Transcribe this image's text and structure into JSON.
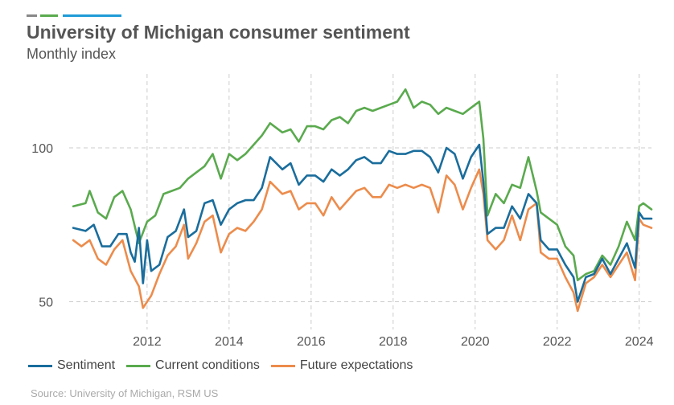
{
  "header": {
    "title": "University of Michigan consumer sentiment",
    "subtitle": "Monthly index",
    "accent_colors": [
      "#888888",
      "#5aaa4e",
      "#1f9bd7"
    ]
  },
  "footer": {
    "source": "Source: University of Michigan, RSM US"
  },
  "chart_data": {
    "type": "line",
    "title": "University of Michigan consumer sentiment",
    "subtitle": "Monthly index",
    "xlabel": "",
    "ylabel": "",
    "x_range": [
      2010.1,
      2024.3
    ],
    "ylim": [
      41,
      124
    ],
    "y_ticks": [
      50,
      100
    ],
    "x_ticks": [
      2012,
      2014,
      2016,
      2018,
      2020,
      2022,
      2024
    ],
    "grid": "dashed",
    "legend_position": "bottom",
    "series": [
      {
        "name": "Sentiment",
        "color": "#1a6d9c",
        "points": [
          [
            2010.2,
            74
          ],
          [
            2010.5,
            73
          ],
          [
            2010.7,
            75
          ],
          [
            2010.9,
            68
          ],
          [
            2011.1,
            68
          ],
          [
            2011.3,
            72
          ],
          [
            2011.5,
            72
          ],
          [
            2011.6,
            66
          ],
          [
            2011.8,
            74
          ],
          [
            2012.0,
            70
          ],
          [
            2011.7,
            63
          ],
          [
            2011.9,
            56
          ],
          [
            2012.1,
            60
          ],
          [
            2012.3,
            62
          ],
          [
            2012.5,
            71
          ],
          [
            2012.7,
            73
          ],
          [
            2012.9,
            80
          ],
          [
            2013.0,
            71
          ],
          [
            2013.2,
            73
          ],
          [
            2013.4,
            82
          ],
          [
            2013.6,
            83
          ],
          [
            2013.8,
            75
          ],
          [
            2014.0,
            80
          ],
          [
            2014.2,
            82
          ],
          [
            2014.4,
            83
          ],
          [
            2014.6,
            83
          ],
          [
            2014.8,
            87
          ],
          [
            2015.0,
            97
          ],
          [
            2015.3,
            93
          ],
          [
            2015.5,
            95
          ],
          [
            2015.7,
            88
          ],
          [
            2015.9,
            91
          ],
          [
            2016.1,
            91
          ],
          [
            2016.3,
            89
          ],
          [
            2016.5,
            93
          ],
          [
            2016.7,
            91
          ],
          [
            2016.9,
            93
          ],
          [
            2017.1,
            96
          ],
          [
            2017.3,
            97
          ],
          [
            2017.5,
            95
          ],
          [
            2017.7,
            95
          ],
          [
            2017.9,
            99
          ],
          [
            2018.1,
            98
          ],
          [
            2018.3,
            98
          ],
          [
            2018.5,
            99
          ],
          [
            2018.7,
            99
          ],
          [
            2018.9,
            97
          ],
          [
            2019.1,
            92
          ],
          [
            2019.3,
            100
          ],
          [
            2019.5,
            98
          ],
          [
            2019.7,
            90
          ],
          [
            2019.9,
            97
          ],
          [
            2020.1,
            101
          ],
          [
            2020.2,
            89
          ],
          [
            2020.3,
            72
          ],
          [
            2020.5,
            74
          ],
          [
            2020.7,
            74
          ],
          [
            2020.9,
            81
          ],
          [
            2021.1,
            77
          ],
          [
            2021.3,
            85
          ],
          [
            2021.5,
            82
          ],
          [
            2021.6,
            70
          ],
          [
            2021.8,
            67
          ],
          [
            2022.0,
            67
          ],
          [
            2022.2,
            62
          ],
          [
            2022.4,
            58
          ],
          [
            2022.5,
            50
          ],
          [
            2022.7,
            58
          ],
          [
            2022.9,
            59
          ],
          [
            2023.1,
            64
          ],
          [
            2023.3,
            59
          ],
          [
            2023.5,
            64
          ],
          [
            2023.7,
            69
          ],
          [
            2023.9,
            61
          ],
          [
            2024.0,
            79
          ],
          [
            2024.1,
            77
          ],
          [
            2024.3,
            77
          ]
        ]
      },
      {
        "name": "Current conditions",
        "color": "#5aaa4e",
        "points": [
          [
            2010.2,
            81
          ],
          [
            2010.5,
            82
          ],
          [
            2010.6,
            86
          ],
          [
            2010.8,
            79
          ],
          [
            2011.0,
            77
          ],
          [
            2011.2,
            84
          ],
          [
            2011.4,
            86
          ],
          [
            2011.6,
            80
          ],
          [
            2011.8,
            69
          ],
          [
            2012.0,
            76
          ],
          [
            2012.2,
            78
          ],
          [
            2012.4,
            85
          ],
          [
            2012.6,
            86
          ],
          [
            2012.8,
            87
          ],
          [
            2013.0,
            90
          ],
          [
            2013.2,
            92
          ],
          [
            2013.4,
            94
          ],
          [
            2013.6,
            98
          ],
          [
            2013.8,
            90
          ],
          [
            2014.0,
            98
          ],
          [
            2014.2,
            96
          ],
          [
            2014.4,
            98
          ],
          [
            2014.6,
            101
          ],
          [
            2014.8,
            104
          ],
          [
            2015.0,
            108
          ],
          [
            2015.3,
            105
          ],
          [
            2015.5,
            106
          ],
          [
            2015.7,
            102
          ],
          [
            2015.9,
            107
          ],
          [
            2016.1,
            107
          ],
          [
            2016.3,
            106
          ],
          [
            2016.5,
            109
          ],
          [
            2016.7,
            110
          ],
          [
            2016.9,
            108
          ],
          [
            2017.1,
            112
          ],
          [
            2017.3,
            113
          ],
          [
            2017.5,
            112
          ],
          [
            2017.7,
            113
          ],
          [
            2017.9,
            114
          ],
          [
            2018.1,
            115
          ],
          [
            2018.3,
            119
          ],
          [
            2018.5,
            113
          ],
          [
            2018.7,
            115
          ],
          [
            2018.9,
            114
          ],
          [
            2019.1,
            111
          ],
          [
            2019.3,
            113
          ],
          [
            2019.5,
            112
          ],
          [
            2019.7,
            111
          ],
          [
            2019.9,
            113
          ],
          [
            2020.1,
            115
          ],
          [
            2020.2,
            103
          ],
          [
            2020.3,
            78
          ],
          [
            2020.5,
            85
          ],
          [
            2020.7,
            82
          ],
          [
            2020.9,
            88
          ],
          [
            2021.1,
            87
          ],
          [
            2021.3,
            97
          ],
          [
            2021.5,
            86
          ],
          [
            2021.6,
            79
          ],
          [
            2021.8,
            77
          ],
          [
            2022.0,
            75
          ],
          [
            2022.2,
            68
          ],
          [
            2022.4,
            65
          ],
          [
            2022.5,
            57
          ],
          [
            2022.7,
            59
          ],
          [
            2022.9,
            60
          ],
          [
            2023.1,
            65
          ],
          [
            2023.3,
            62
          ],
          [
            2023.5,
            68
          ],
          [
            2023.7,
            76
          ],
          [
            2023.9,
            70
          ],
          [
            2024.0,
            81
          ],
          [
            2024.1,
            82
          ],
          [
            2024.3,
            80
          ]
        ]
      },
      {
        "name": "Future expectations",
        "color": "#ec8c4c",
        "points": [
          [
            2010.2,
            70
          ],
          [
            2010.4,
            68
          ],
          [
            2010.6,
            70
          ],
          [
            2010.8,
            64
          ],
          [
            2011.0,
            62
          ],
          [
            2011.2,
            67
          ],
          [
            2011.4,
            70
          ],
          [
            2011.6,
            60
          ],
          [
            2011.8,
            55
          ],
          [
            2011.9,
            48
          ],
          [
            2012.1,
            52
          ],
          [
            2012.3,
            59
          ],
          [
            2012.5,
            65
          ],
          [
            2012.7,
            68
          ],
          [
            2012.9,
            75
          ],
          [
            2013.0,
            64
          ],
          [
            2013.2,
            69
          ],
          [
            2013.4,
            76
          ],
          [
            2013.6,
            78
          ],
          [
            2013.8,
            66
          ],
          [
            2014.0,
            72
          ],
          [
            2014.2,
            74
          ],
          [
            2014.4,
            73
          ],
          [
            2014.6,
            76
          ],
          [
            2014.8,
            80
          ],
          [
            2015.0,
            89
          ],
          [
            2015.3,
            85
          ],
          [
            2015.5,
            86
          ],
          [
            2015.7,
            80
          ],
          [
            2015.9,
            82
          ],
          [
            2016.1,
            82
          ],
          [
            2016.3,
            78
          ],
          [
            2016.5,
            84
          ],
          [
            2016.7,
            80
          ],
          [
            2016.9,
            83
          ],
          [
            2017.1,
            86
          ],
          [
            2017.3,
            87
          ],
          [
            2017.5,
            84
          ],
          [
            2017.7,
            84
          ],
          [
            2017.9,
            88
          ],
          [
            2018.1,
            87
          ],
          [
            2018.3,
            88
          ],
          [
            2018.5,
            87
          ],
          [
            2018.7,
            88
          ],
          [
            2018.9,
            87
          ],
          [
            2019.1,
            79
          ],
          [
            2019.3,
            91
          ],
          [
            2019.5,
            88
          ],
          [
            2019.7,
            80
          ],
          [
            2019.9,
            87
          ],
          [
            2020.1,
            93
          ],
          [
            2020.2,
            85
          ],
          [
            2020.3,
            70
          ],
          [
            2020.5,
            67
          ],
          [
            2020.7,
            70
          ],
          [
            2020.9,
            78
          ],
          [
            2021.1,
            70
          ],
          [
            2021.3,
            80
          ],
          [
            2021.5,
            82
          ],
          [
            2021.6,
            66
          ],
          [
            2021.8,
            64
          ],
          [
            2022.0,
            64
          ],
          [
            2022.2,
            58
          ],
          [
            2022.4,
            53
          ],
          [
            2022.5,
            47
          ],
          [
            2022.7,
            56
          ],
          [
            2022.9,
            58
          ],
          [
            2023.1,
            62
          ],
          [
            2023.3,
            58
          ],
          [
            2023.5,
            62
          ],
          [
            2023.7,
            66
          ],
          [
            2023.9,
            57
          ],
          [
            2024.0,
            77
          ],
          [
            2024.1,
            75
          ],
          [
            2024.3,
            74
          ]
        ]
      }
    ]
  }
}
